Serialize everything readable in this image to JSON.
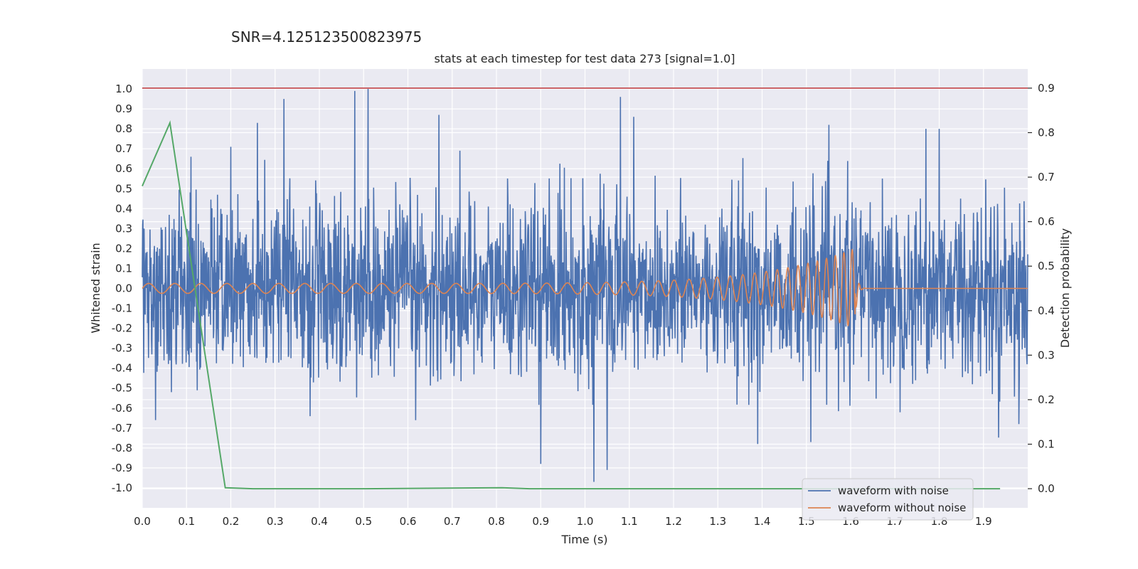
{
  "figure": {
    "suptitle": "SNR=4.125123500823975"
  },
  "colors": {
    "background": "#eaeaf2",
    "grid": "#ffffff",
    "noisy": "#4c72b0",
    "clean": "#dd8452",
    "probability": "#55a868",
    "threshold": "#c44e52"
  },
  "chart_data": {
    "type": "line",
    "title": "stats at each timestep for test data 273 [signal=1.0]",
    "xlabel": "Time (s)",
    "ylabel": "Whitened strain",
    "y2label": "Detection probability",
    "xlim": [
      0,
      2.0
    ],
    "ylim": [
      -1.1,
      1.1
    ],
    "y2lim": [
      -0.043,
      0.943
    ],
    "xticks": [
      "0.0",
      "0.1",
      "0.2",
      "0.3",
      "0.4",
      "0.5",
      "0.6",
      "0.7",
      "0.8",
      "0.9",
      "1.0",
      "1.1",
      "1.2",
      "1.3",
      "1.4",
      "1.5",
      "1.6",
      "1.7",
      "1.8",
      "1.9"
    ],
    "yticks": [
      "1.0",
      "0.9",
      "0.8",
      "0.7",
      "0.6",
      "0.5",
      "0.4",
      "0.3",
      "0.2",
      "0.1",
      "0.0",
      "-0.1",
      "-0.2",
      "-0.3",
      "-0.4",
      "-0.5",
      "-0.6",
      "-0.7",
      "-0.8",
      "-0.9",
      "-1.0"
    ],
    "y2ticks": [
      "0.9",
      "0.8",
      "0.7",
      "0.6",
      "0.5",
      "0.4",
      "0.3",
      "0.2",
      "0.1",
      "0.0"
    ],
    "grid": true,
    "legend_position": "lower-right",
    "series": [
      {
        "name": "waveform with noise",
        "axis": "left",
        "kind": "noise",
        "color_key": "noisy",
        "x_range": [
          0,
          2.0
        ],
        "amplitude_std": 0.22,
        "notable_peaks": [
          {
            "x": 0.48,
            "y": 0.99
          },
          {
            "x": 0.51,
            "y": 1.0
          },
          {
            "x": 0.32,
            "y": 0.95
          },
          {
            "x": 1.08,
            "y": 0.96
          },
          {
            "x": 1.02,
            "y": -0.97
          },
          {
            "x": 1.05,
            "y": -0.91
          },
          {
            "x": 0.9,
            "y": -0.88
          },
          {
            "x": 0.67,
            "y": 0.87
          },
          {
            "x": 1.11,
            "y": 0.86
          },
          {
            "x": 0.26,
            "y": 0.83
          },
          {
            "x": 1.8,
            "y": 0.8
          },
          {
            "x": 1.77,
            "y": 0.8
          },
          {
            "x": 0.03,
            "y": -0.66
          },
          {
            "x": 0.11,
            "y": 0.66
          },
          {
            "x": 0.2,
            "y": 0.71
          },
          {
            "x": 1.39,
            "y": -0.78
          },
          {
            "x": 1.51,
            "y": -0.77
          },
          {
            "x": 1.98,
            "y": -0.68
          }
        ]
      },
      {
        "name": "waveform without noise",
        "axis": "left",
        "kind": "chirp",
        "color_key": "clean",
        "x_range": [
          0,
          2.0
        ],
        "merger_time": 1.61,
        "peak_amplitude": 0.2,
        "min_peak": -0.16,
        "start_amplitude": 0.025,
        "f_start": 17,
        "f_end": 55
      },
      {
        "name": "",
        "axis": "right",
        "kind": "line",
        "color_key": "probability",
        "x": [
          0.0,
          0.0625,
          0.1875,
          0.25,
          0.5,
          0.8125,
          0.875,
          1.0,
          1.5,
          1.9375
        ],
        "y": [
          0.68,
          0.822,
          0.002,
          0.0,
          0.0,
          0.002,
          0.0,
          0.0,
          0.0,
          0.0
        ]
      },
      {
        "name": "",
        "axis": "right",
        "kind": "hline",
        "color_key": "threshold",
        "y": 0.9
      }
    ]
  }
}
